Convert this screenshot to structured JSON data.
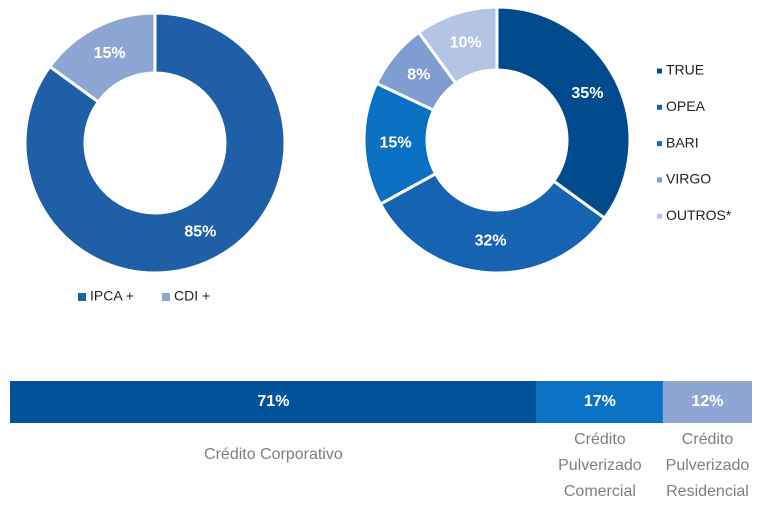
{
  "chart_data": [
    {
      "type": "donut",
      "categories": [
        "IPCA +",
        "CDI +"
      ],
      "values": [
        85,
        15
      ],
      "value_labels": [
        "85%",
        "15%"
      ],
      "colors": [
        "#1f5fa8",
        "#8da6d3"
      ],
      "legend_position": "bottom"
    },
    {
      "type": "donut",
      "categories": [
        "TRUE",
        "OPEA",
        "BARI",
        "VIRGO",
        "OUTROS*"
      ],
      "values": [
        35,
        32,
        15,
        8,
        10
      ],
      "value_labels": [
        "35%",
        "32%",
        "15%",
        "8%",
        "10%"
      ],
      "colors": [
        "#004b8d",
        "#1663b2",
        "#0a70c2",
        "#7f9dd0",
        "#b4c4e4"
      ],
      "legend_position": "right"
    },
    {
      "type": "stacked_bar",
      "categories": [
        [
          "Crédito Corporativo"
        ],
        [
          "Crédito",
          "Pulverizado",
          "Comercial"
        ],
        [
          "Crédito",
          "Pulverizado",
          "Residencial"
        ]
      ],
      "values": [
        71,
        17,
        12
      ],
      "value_labels": [
        "71%",
        "17%",
        "12%"
      ],
      "colors": [
        "#00529b",
        "#0a72c4",
        "#8da6d3"
      ]
    }
  ]
}
